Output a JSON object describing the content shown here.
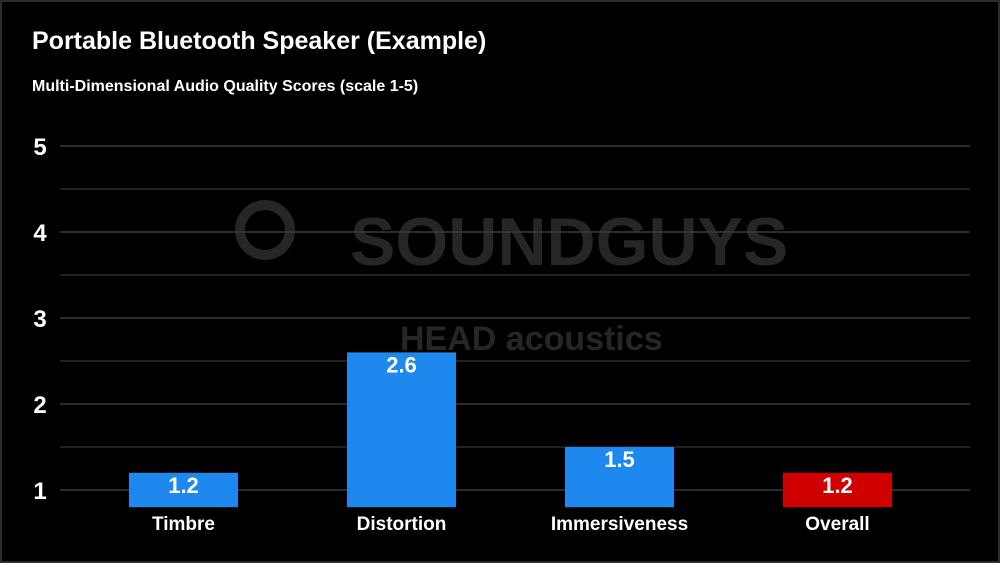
{
  "chart_data": {
    "type": "bar",
    "title": "Portable Bluetooth Speaker (Example)",
    "subtitle": "Multi-Dimensional Audio Quality Scores (scale 1-5)",
    "categories": [
      "Timbre",
      "Distortion",
      "Immersiveness",
      "Overall"
    ],
    "values": [
      1.2,
      2.6,
      1.5,
      1.2
    ],
    "value_labels": [
      "1.2",
      "2.6",
      "1.5",
      "1.2"
    ],
    "colors": [
      "#1e88ee",
      "#1e88ee",
      "#1e88ee",
      "#d00000"
    ],
    "yticks": [
      1,
      2,
      3,
      4,
      5
    ],
    "ytick_labels": [
      "1",
      "2",
      "3",
      "4",
      "5"
    ],
    "ylim": [
      0.8,
      5
    ],
    "grid": true,
    "xlabel": "",
    "ylabel": ""
  },
  "watermark": {
    "brand": "SOUNDGUYS",
    "partner": "HEAD acoustics"
  }
}
